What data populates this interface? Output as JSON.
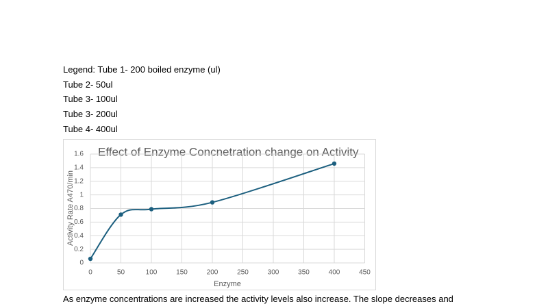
{
  "document": {
    "legend_lines": [
      "Legend: Tube 1- 200 boiled enzyme (ul)",
      "Tube 2- 50ul",
      "Tube 3- 100ul",
      "Tube 3- 200ul",
      "Tube 4- 400ul"
    ],
    "paragraph": "As enzyme concentrations are increased the activity levels also increase. The slope decreases and"
  },
  "chart_data": {
    "type": "scatter",
    "title": "Effect of Enzyme Concnetration change on Activity",
    "x_label": "Enzyme",
    "y_label": "Activity Rate A470/min",
    "series": [
      {
        "name": "Activity",
        "color": "#1c5f7f",
        "x": [
          0,
          50,
          100,
          200,
          400
        ],
        "values": [
          0.06,
          0.71,
          0.79,
          0.89,
          1.46
        ]
      }
    ],
    "xlim": [
      0,
      450
    ],
    "xticks": [
      0,
      50,
      100,
      150,
      200,
      250,
      300,
      350,
      400,
      450
    ],
    "ylim": [
      0,
      1.6
    ],
    "yticks": [
      0,
      0.2,
      0.4,
      0.6,
      0.8,
      1,
      1.2,
      1.4,
      1.6
    ],
    "grid": true,
    "smooth": true
  }
}
